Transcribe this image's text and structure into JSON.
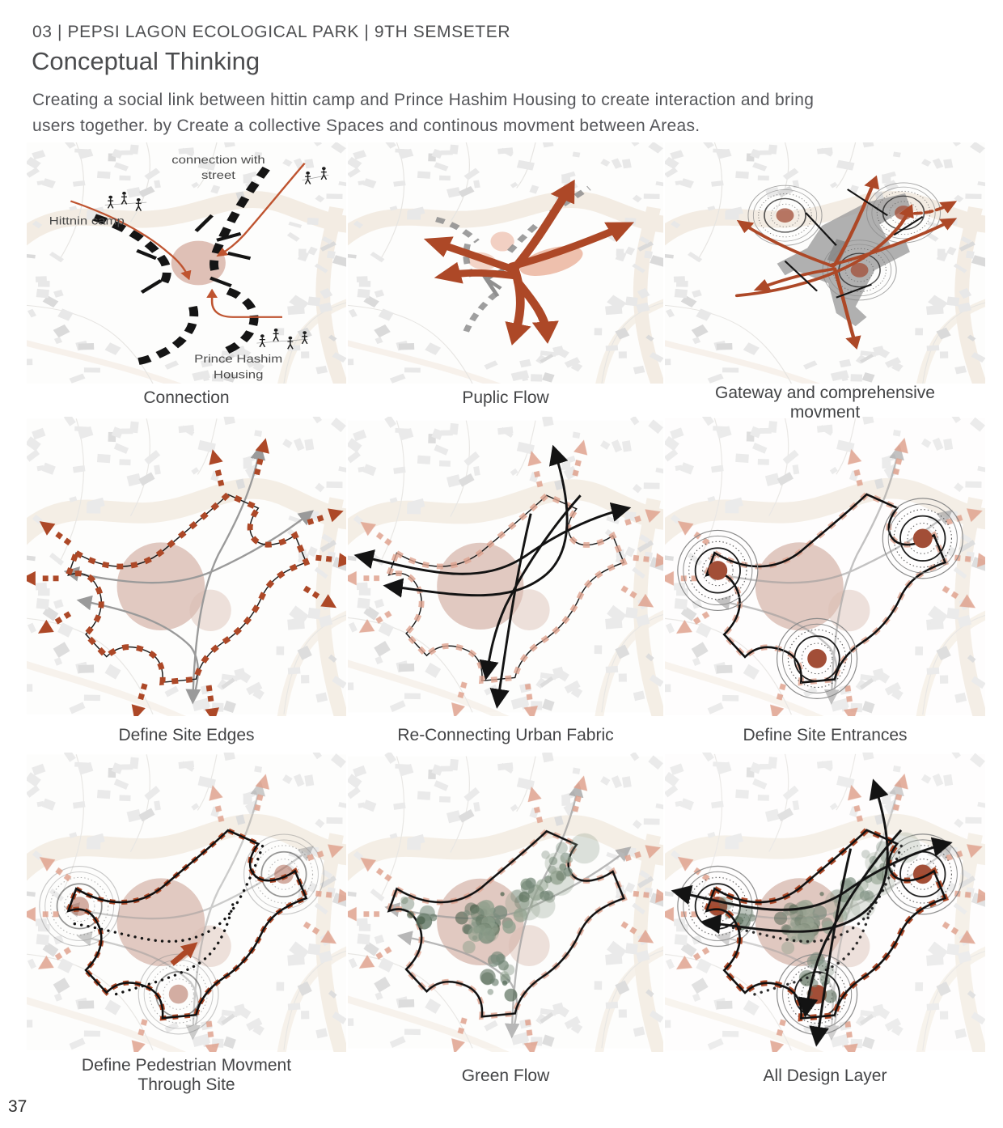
{
  "header": {
    "kicker": "03 | PEPSI LAGON ECOLOGICAL PARK | 9TH SEMSETER",
    "title": "Conceptual Thinking",
    "description": "Creating a social link between hittin camp and Prince Hashim Housing to create interaction and bring users together. by Create a collective Spaces and continous movment between Areas."
  },
  "panels": [
    {
      "id": "connection",
      "caption": "Connection",
      "labels": {
        "top1": "connection with",
        "top2": "street",
        "left": "Hittnin camp",
        "bottom1": "Prince Hashim",
        "bottom2": "Housing"
      }
    },
    {
      "id": "public-flow",
      "caption": "Puplic Flow"
    },
    {
      "id": "gateway",
      "caption": "Gateway and comprehensive movment"
    },
    {
      "id": "site-edges",
      "caption": "Define Site Edges"
    },
    {
      "id": "urban-fabric",
      "caption": "Re-Connecting Urban Fabric"
    },
    {
      "id": "site-entrances",
      "caption": "Define Site Entrances"
    },
    {
      "id": "pedestrian",
      "caption": "Define Pedestrian Movment Through Site"
    },
    {
      "id": "green-flow",
      "caption": "Green Flow"
    },
    {
      "id": "all-layers",
      "caption": "All Design Layer"
    }
  ],
  "page_number": "37",
  "colors": {
    "accent_red": "#ad4827",
    "faded_pink": "#dfa28e",
    "blob_pink": "#d9bcb2",
    "road_beige": "#ece1d1",
    "building_gray": "#dadada",
    "flow_gray": "#9a9a9a",
    "tree_green": "#5c7260",
    "ink": "#141414",
    "text_gray": "#4d4e50"
  }
}
